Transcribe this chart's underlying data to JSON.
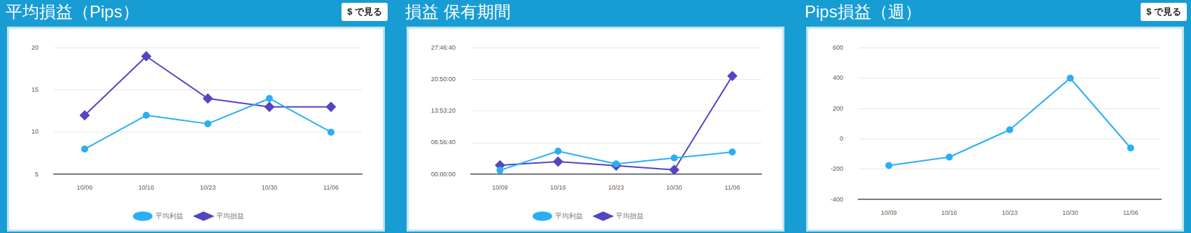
{
  "chart_data": [
    {
      "type": "line",
      "title": "平均損益（Pips）",
      "annotations": [
        "$ で見る"
      ],
      "categories": [
        "10/09",
        "10/16",
        "10/23",
        "10/30",
        "11/06"
      ],
      "series": [
        {
          "name": "平均利益",
          "color": "#2aaff5",
          "marker": "circle",
          "values": [
            8,
            12,
            11,
            14,
            10
          ]
        },
        {
          "name": "平均損益",
          "color": "#5246c2",
          "marker": "diamond",
          "values": [
            12,
            19,
            14,
            13,
            13
          ]
        }
      ],
      "ylim": [
        5,
        20
      ],
      "yticks": [
        5,
        10,
        15,
        20
      ],
      "grid": "y",
      "legend": "bottom"
    },
    {
      "type": "line",
      "title": "損益 保有期間",
      "categories": [
        "10/09",
        "10/16",
        "10/23",
        "10/30",
        "11/06"
      ],
      "series": [
        {
          "name": "平均利益",
          "color": "#2aaff5",
          "marker": "circle",
          "values": [
            0.9,
            5.1,
            2.3,
            3.6,
            4.9
          ]
        },
        {
          "name": "平均損益",
          "color": "#5246c2",
          "marker": "diamond",
          "values": [
            2.0,
            2.8,
            1.9,
            1.0,
            21.6
          ]
        }
      ],
      "ylim": [
        0,
        27.77778
      ],
      "yticks": [
        {
          "value": 0,
          "label": "00:00:00"
        },
        {
          "value": 6.94444,
          "label": "06:56:40"
        },
        {
          "value": 13.88889,
          "label": "13:53:20"
        },
        {
          "value": 20.83333,
          "label": "20:50:00"
        },
        {
          "value": 27.77778,
          "label": "27:46:40"
        }
      ],
      "grid": "y",
      "legend": "bottom"
    },
    {
      "type": "line",
      "title": "Pips損益（週）",
      "annotations": [
        "$ で見る"
      ],
      "categories": [
        "10/09",
        "10/16",
        "10/23",
        "10/30",
        "11/06"
      ],
      "series": [
        {
          "color": "#2aaff5",
          "marker": "circle",
          "values": [
            -175,
            -120,
            60,
            400,
            -60
          ]
        }
      ],
      "ylim": [
        -400,
        600
      ],
      "yticks": [
        -400,
        -200,
        0,
        200,
        400,
        600
      ],
      "grid": "y",
      "legend": false
    }
  ]
}
